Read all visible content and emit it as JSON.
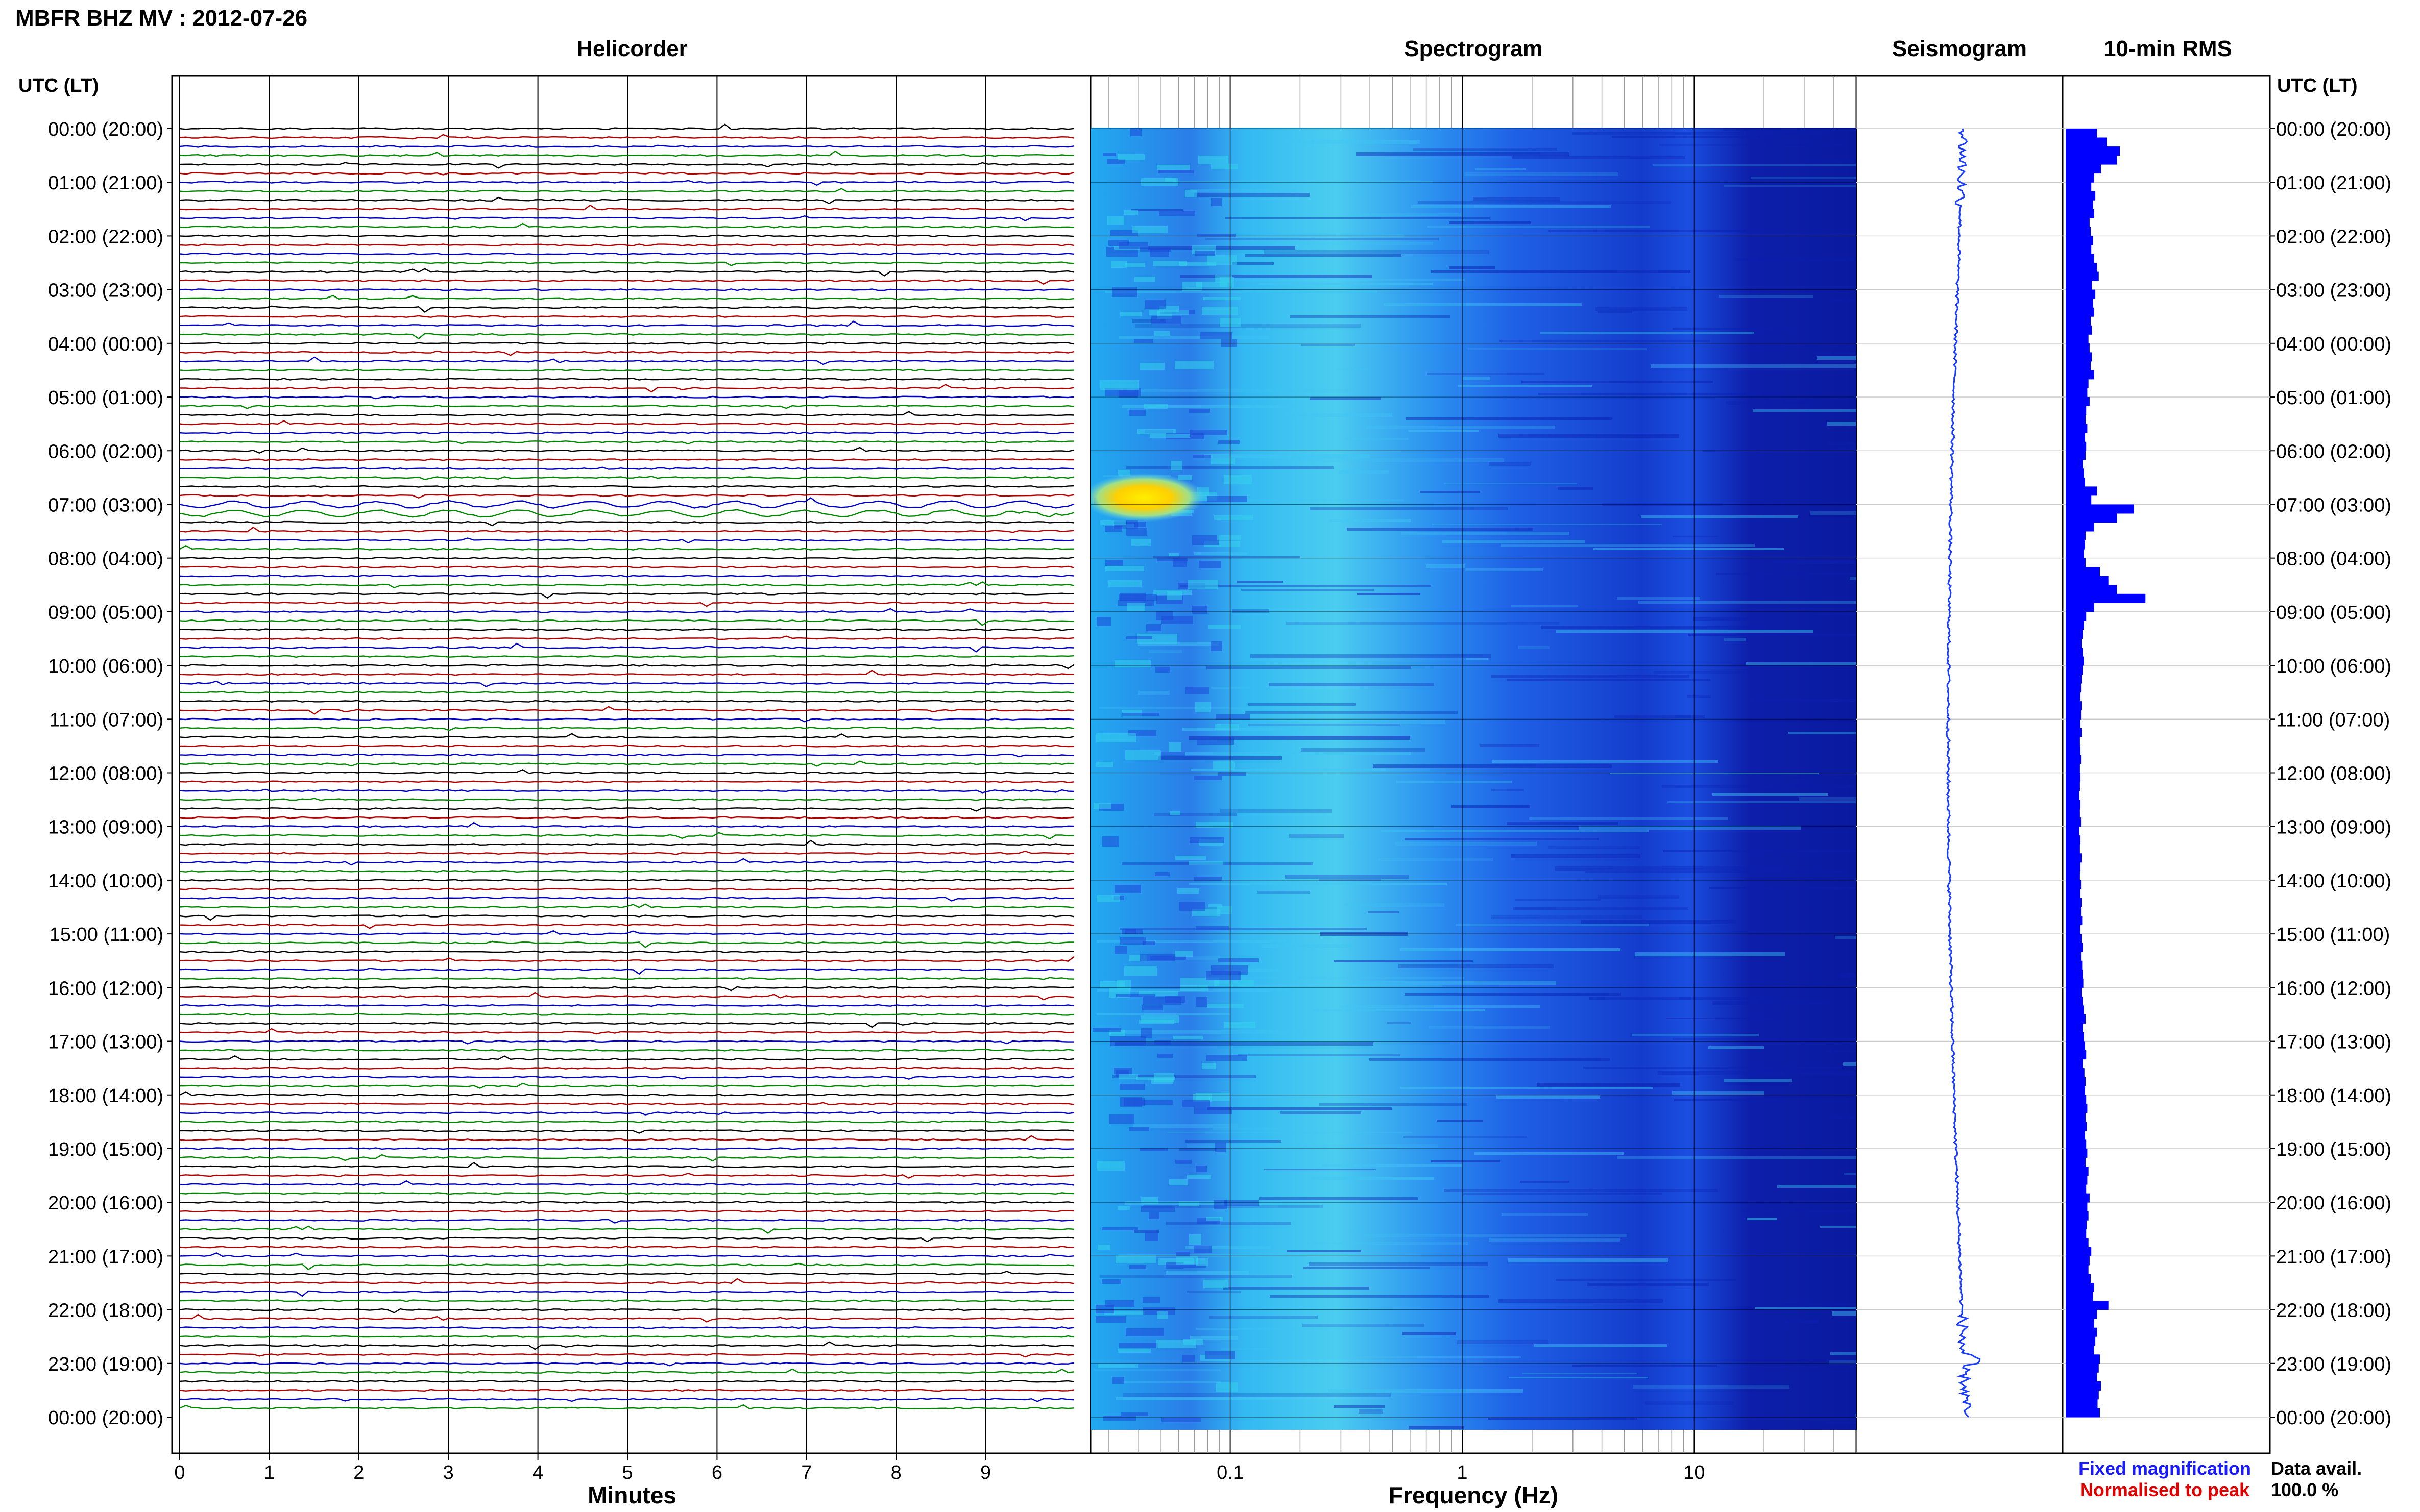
{
  "page": {
    "title": "MBFR BHZ MV : 2012-07-26"
  },
  "panels": {
    "helicorder": "Helicorder",
    "spectrogram": "Spectrogram",
    "seismogram": "Seismogram",
    "rms": "10-min RMS"
  },
  "axes": {
    "time_header_left": "UTC (LT)",
    "time_header_right": "UTC (LT)",
    "minutes_label": "Minutes",
    "frequency_label": "Frequency (Hz)"
  },
  "legend": {
    "fixed": "Fixed magnification",
    "normalised": "Normalised to peak",
    "data_avail_label": "Data avail.",
    "data_avail_value": "100.0 %"
  },
  "colors": {
    "fixed": "#1a1aff",
    "normalised": "#e00000",
    "trace_cycle": [
      "#000000",
      "#b00000",
      "#0000c0",
      "#008800"
    ],
    "rms_bar": "#0000ff"
  },
  "chart_data": {
    "type": "helicorder",
    "time_labels": [
      "00:00 (20:00)",
      "01:00 (21:00)",
      "02:00 (22:00)",
      "03:00 (23:00)",
      "04:00 (00:00)",
      "05:00 (01:00)",
      "06:00 (02:00)",
      "07:00 (03:00)",
      "08:00 (04:00)",
      "09:00 (05:00)",
      "10:00 (06:00)",
      "11:00 (07:00)",
      "12:00 (08:00)",
      "13:00 (09:00)",
      "14:00 (10:00)",
      "15:00 (11:00)",
      "16:00 (12:00)",
      "17:00 (13:00)",
      "18:00 (14:00)",
      "19:00 (15:00)",
      "20:00 (16:00)",
      "21:00 (17:00)",
      "22:00 (18:00)",
      "23:00 (19:00)",
      "00:00 (20:00)"
    ],
    "minute_ticks": [
      "0",
      "1",
      "2",
      "3",
      "4",
      "5",
      "6",
      "7",
      "8",
      "9"
    ],
    "minutes_range": [
      0,
      10
    ],
    "frequency_ticks": [
      "0.1",
      "1",
      "10"
    ],
    "frequency_tick_values": [
      0.1,
      1,
      10
    ],
    "frequency_range_hz": [
      0.025,
      50
    ],
    "frequency_scale": "log",
    "helicorder_lines": 144,
    "rms_10min": [
      0.55,
      0.72,
      0.95,
      0.9,
      0.62,
      0.5,
      0.45,
      0.52,
      0.48,
      0.5,
      0.42,
      0.44,
      0.48,
      0.45,
      0.5,
      0.55,
      0.58,
      0.46,
      0.52,
      0.48,
      0.5,
      0.44,
      0.46,
      0.4,
      0.42,
      0.46,
      0.44,
      0.5,
      0.4,
      0.38,
      0.42,
      0.36,
      0.35,
      0.38,
      0.34,
      0.36,
      0.35,
      0.3,
      0.32,
      0.34,
      0.55,
      0.45,
      1.2,
      0.9,
      0.5,
      0.35,
      0.34,
      0.32,
      0.35,
      0.6,
      0.75,
      0.9,
      1.4,
      0.5,
      0.36,
      0.32,
      0.3,
      0.28,
      0.3,
      0.32,
      0.3,
      0.28,
      0.27,
      0.26,
      0.28,
      0.27,
      0.26,
      0.28,
      0.25,
      0.26,
      0.27,
      0.25,
      0.26,
      0.25,
      0.24,
      0.26,
      0.25,
      0.27,
      0.24,
      0.26,
      0.25,
      0.28,
      0.26,
      0.25,
      0.27,
      0.26,
      0.28,
      0.27,
      0.29,
      0.26,
      0.28,
      0.3,
      0.27,
      0.29,
      0.3,
      0.31,
      0.28,
      0.3,
      0.32,
      0.35,
      0.3,
      0.32,
      0.34,
      0.36,
      0.3,
      0.33,
      0.35,
      0.34,
      0.36,
      0.38,
      0.35,
      0.37,
      0.34,
      0.36,
      0.38,
      0.35,
      0.4,
      0.38,
      0.36,
      0.42,
      0.38,
      0.4,
      0.37,
      0.36,
      0.4,
      0.45,
      0.42,
      0.4,
      0.44,
      0.5,
      0.48,
      0.75,
      0.55,
      0.5,
      0.55,
      0.52,
      0.5,
      0.6,
      0.58,
      0.55,
      0.62,
      0.58,
      0.56,
      0.6
    ]
  }
}
